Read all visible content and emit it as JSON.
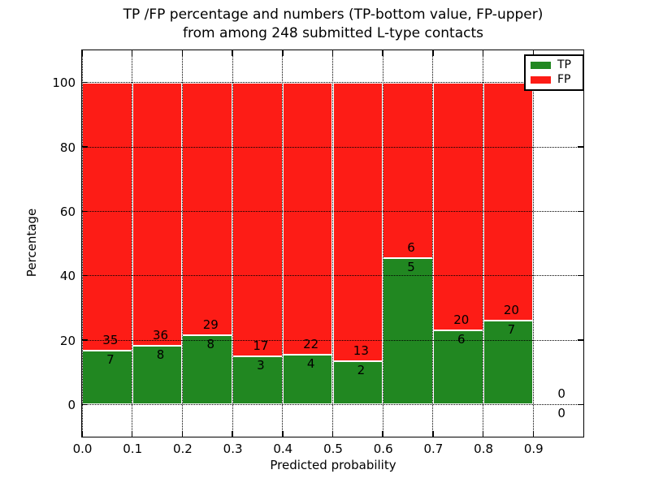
{
  "chart_data": {
    "type": "bar",
    "stacked": true,
    "normalized_to_percent": true,
    "title_line1": "TP /FP percentage and numbers (TP-bottom value, FP-upper)",
    "title_line2": "from among 248 submitted L-type contacts",
    "xlabel": "Predicted probability",
    "ylabel": "Percentage",
    "total_contacts": 248,
    "xlim": [
      0.0,
      1.0
    ],
    "ylim": [
      -10,
      110
    ],
    "bin_width": 0.1,
    "grid": "dotted-black",
    "xtick_labels": [
      "0.0",
      "0.1",
      "0.2",
      "0.3",
      "0.4",
      "0.5",
      "0.6",
      "0.7",
      "0.8",
      "0.9"
    ],
    "xtick_values": [
      0.0,
      0.1,
      0.2,
      0.3,
      0.4,
      0.5,
      0.6,
      0.7,
      0.8,
      0.9
    ],
    "ytick_labels": [
      "0",
      "20",
      "40",
      "60",
      "80",
      "100"
    ],
    "ytick_values": [
      0,
      20,
      40,
      60,
      80,
      100
    ],
    "bins": [
      {
        "x_range": [
          0.0,
          0.1
        ],
        "tp": 7,
        "fp": 35,
        "tp_pct": 16.7
      },
      {
        "x_range": [
          0.1,
          0.2
        ],
        "tp": 8,
        "fp": 36,
        "tp_pct": 18.2
      },
      {
        "x_range": [
          0.2,
          0.3
        ],
        "tp": 8,
        "fp": 29,
        "tp_pct": 21.6
      },
      {
        "x_range": [
          0.3,
          0.4
        ],
        "tp": 3,
        "fp": 17,
        "tp_pct": 15.0
      },
      {
        "x_range": [
          0.4,
          0.5
        ],
        "tp": 4,
        "fp": 22,
        "tp_pct": 15.4
      },
      {
        "x_range": [
          0.5,
          0.6
        ],
        "tp": 2,
        "fp": 13,
        "tp_pct": 13.3
      },
      {
        "x_range": [
          0.6,
          0.7
        ],
        "tp": 5,
        "fp": 6,
        "tp_pct": 45.5
      },
      {
        "x_range": [
          0.7,
          0.8
        ],
        "tp": 6,
        "fp": 20,
        "tp_pct": 23.1
      },
      {
        "x_range": [
          0.8,
          0.9
        ],
        "tp": 7,
        "fp": 20,
        "tp_pct": 25.9
      },
      {
        "x_range": [
          0.9,
          1.0
        ],
        "tp": 0,
        "fp": 0,
        "tp_pct": 0
      }
    ],
    "legend": {
      "position": "upper right",
      "entries": [
        {
          "label": "TP",
          "color": "#218721"
        },
        {
          "label": "FP",
          "color": "#fd1c16"
        }
      ]
    },
    "colors": {
      "tp": "#218721",
      "fp": "#fd1c16",
      "bar_edge": "#ffffff",
      "grid": "#000000",
      "text": "#000000",
      "background": "#ffffff"
    }
  }
}
